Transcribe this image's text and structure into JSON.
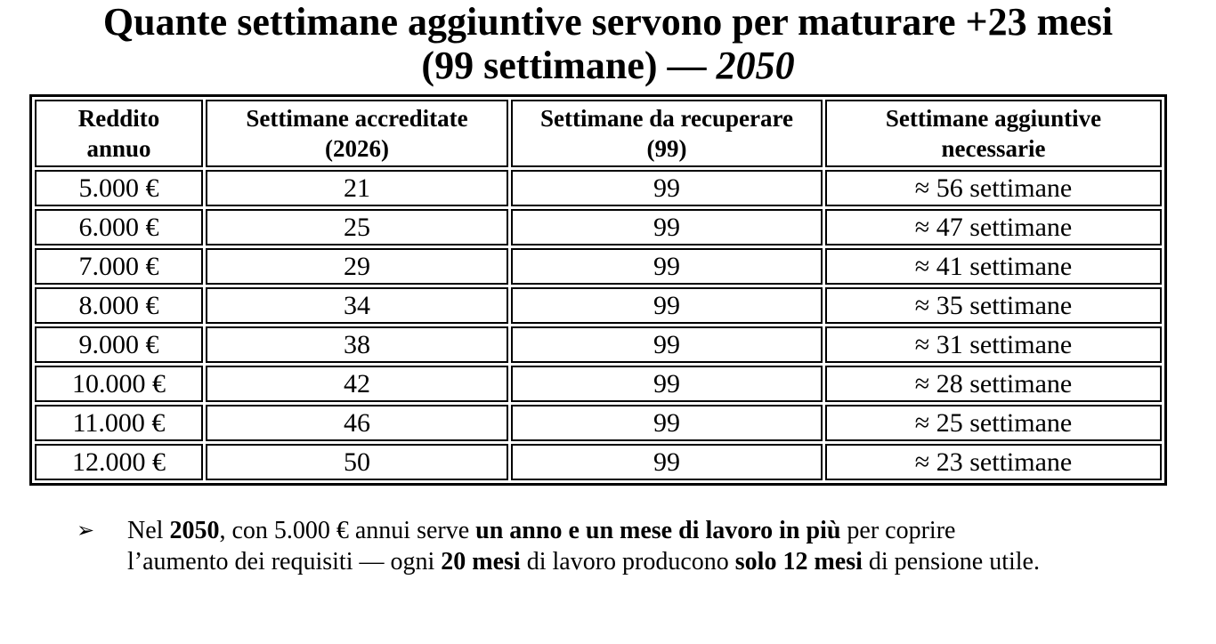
{
  "title": {
    "line1": "Quante settimane aggiuntive servono per maturare +23 mesi",
    "line2_prefix": "(99 settimane) — ",
    "line2_year": "2050"
  },
  "table": {
    "headers": [
      "Reddito\nannuo",
      "Settimane accreditate\n(2026)",
      "Settimane da recuperare\n(99)",
      "Settimane aggiuntive\nnecessarie"
    ],
    "rows": [
      {
        "income": "5.000 €",
        "accredited": "21",
        "recover": "99",
        "additional": "≈ 56 settimane"
      },
      {
        "income": "6.000 €",
        "accredited": "25",
        "recover": "99",
        "additional": "≈ 47 settimane"
      },
      {
        "income": "7.000 €",
        "accredited": "29",
        "recover": "99",
        "additional": "≈ 41 settimane"
      },
      {
        "income": "8.000 €",
        "accredited": "34",
        "recover": "99",
        "additional": "≈ 35 settimane"
      },
      {
        "income": "9.000 €",
        "accredited": "38",
        "recover": "99",
        "additional": "≈ 31 settimane"
      },
      {
        "income": "10.000 €",
        "accredited": "42",
        "recover": "99",
        "additional": "≈ 28 settimane"
      },
      {
        "income": "11.000 €",
        "accredited": "46",
        "recover": "99",
        "additional": "≈ 25 settimane"
      },
      {
        "income": "12.000 €",
        "accredited": "50",
        "recover": "99",
        "additional": "≈ 23 settimane"
      }
    ]
  },
  "note": {
    "bullet": "➢",
    "segments": [
      {
        "text": "Nel ",
        "bold": false
      },
      {
        "text": "2050",
        "bold": true
      },
      {
        "text": ", con 5.000 € annui serve ",
        "bold": false
      },
      {
        "text": "un anno e un mese di lavoro in più",
        "bold": true
      },
      {
        "text": " per coprire\nl’aumento dei requisiti — ogni ",
        "bold": false
      },
      {
        "text": "20 mesi",
        "bold": true
      },
      {
        "text": " di lavoro producono ",
        "bold": false
      },
      {
        "text": "solo 12 mesi",
        "bold": true
      },
      {
        "text": " di pensione utile.",
        "bold": false
      }
    ]
  },
  "colors": {
    "text": "#000000",
    "background": "#ffffff",
    "border": "#000000"
  }
}
